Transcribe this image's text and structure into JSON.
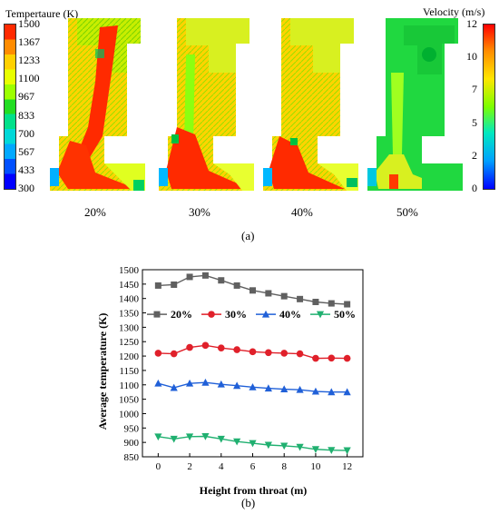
{
  "panel_a": {
    "temp_legend": {
      "title": "Tempertaure (K)",
      "ticks": [
        "1500",
        "1367",
        "1233",
        "1100",
        "967",
        "833",
        "700",
        "567",
        "433",
        "300"
      ],
      "colors": [
        "#ff2a00",
        "#ff8c00",
        "#ffd000",
        "#e8ff00",
        "#9cff00",
        "#22dd22",
        "#00e08a",
        "#00d8d8",
        "#00a8ff",
        "#0050ff",
        "#0000ff"
      ]
    },
    "velocity_legend": {
      "title": "Velocity (m/s)",
      "ticks": [
        "12",
        "10",
        "7",
        "5",
        "2",
        "0"
      ]
    },
    "cases": [
      "20%",
      "30%",
      "40%",
      "50%"
    ],
    "label": "(a)"
  },
  "panel_b": {
    "label": "(b)"
  },
  "chart_data": {
    "type": "line",
    "title": "",
    "xlabel": "Height from throat (m)",
    "ylabel": "Average temperature (K)",
    "xlim": [
      -1,
      13
    ],
    "ylim": [
      850,
      1500
    ],
    "xticks": [
      0,
      2,
      4,
      6,
      8,
      10,
      12
    ],
    "yticks": [
      850,
      900,
      950,
      1000,
      1050,
      1100,
      1150,
      1200,
      1250,
      1300,
      1350,
      1400,
      1450,
      1500
    ],
    "grid": false,
    "legend_position": "middle, horizontal",
    "x": [
      0,
      1,
      2,
      3,
      4,
      5,
      6,
      7,
      8,
      9,
      10,
      11,
      12
    ],
    "series": [
      {
        "name": "20%",
        "color": "#606060",
        "marker": "square",
        "values": [
          1445,
          1448,
          1475,
          1480,
          1463,
          1445,
          1428,
          1418,
          1408,
          1398,
          1388,
          1383,
          1380
        ]
      },
      {
        "name": "30%",
        "color": "#e0202a",
        "marker": "circle",
        "values": [
          1210,
          1208,
          1230,
          1237,
          1228,
          1222,
          1215,
          1212,
          1210,
          1208,
          1192,
          1193,
          1192
        ]
      },
      {
        "name": "40%",
        "color": "#2060d8",
        "marker": "triangle-up",
        "values": [
          1105,
          1090,
          1105,
          1108,
          1102,
          1097,
          1092,
          1088,
          1085,
          1083,
          1077,
          1075,
          1075
        ]
      },
      {
        "name": "50%",
        "color": "#20b070",
        "marker": "triangle-down",
        "values": [
          920,
          912,
          920,
          921,
          912,
          903,
          897,
          891,
          888,
          884,
          876,
          873,
          872
        ]
      }
    ]
  }
}
